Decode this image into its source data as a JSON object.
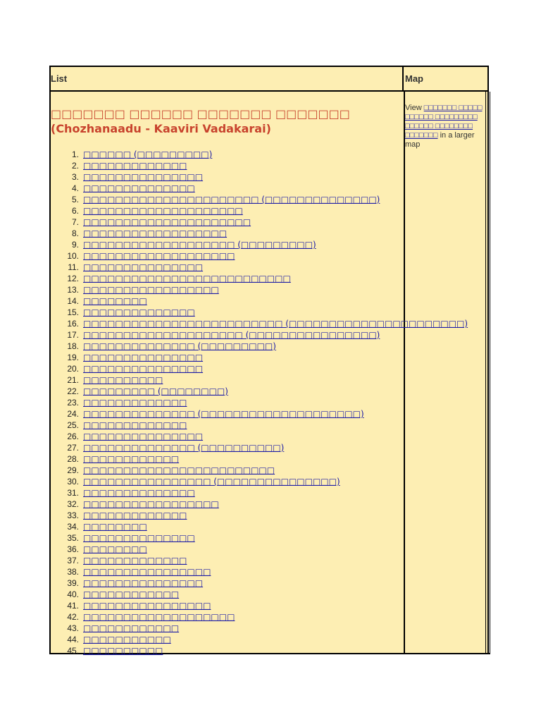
{
  "header": {
    "list_label": "List",
    "map_label": "Map"
  },
  "title": "□□□□□□□ □□□□□□ □□□□□□□ □□□□□□□ (Chozhanaadu - Kaaviri Vadakarai)",
  "map_cell": {
    "prefix": "View ",
    "link_text": "□□□□□□□ □□□□□ □□□□□□ □□□□□□□□□ □□□□□□ □□□□□□□□ □□□□□□□",
    "suffix": " in a larger map"
  },
  "items": [
    {
      "num": "1.",
      "text": "□□□□□□ (□□□□□□□□□)"
    },
    {
      "num": "2.",
      "text": "□□□□□□□□□□□□□"
    },
    {
      "num": "3.",
      "text": "□□□□□□□□□□□□□□□"
    },
    {
      "num": "4.",
      "text": "□□□□□□□□□□□□□□"
    },
    {
      "num": "5.",
      "text": "□□□□□□□□□□□□□□□□□□□□□□ (□□□□□□□□□□□□□□)"
    },
    {
      "num": "6.",
      "text": "□□□□□□□□□□□□□□□□□□□□"
    },
    {
      "num": "7.",
      "text": "□□□□□□□□□□□□□□□□□□□□□"
    },
    {
      "num": "8.",
      "text": "□□□□□□□□□□□□□□□□□□"
    },
    {
      "num": "9.",
      "text": "□□□□□□□□□□□□□□□□□□□ (□□□□□□□□□)"
    },
    {
      "num": "10.",
      "text": "□□□□□□□□□□□□□□□□□□□"
    },
    {
      "num": "11.",
      "text": "□□□□□□□□□□□□□□□"
    },
    {
      "num": "12.",
      "text": "□□□□□□□□□□□□□□□□□□□□□□□□□□"
    },
    {
      "num": "13.",
      "text": "□□□□□□□□□□□□□□□□□"
    },
    {
      "num": "14.",
      "text": "□□□□□□□□"
    },
    {
      "num": "15.",
      "text": "□□□□□□□□□□□□□□"
    },
    {
      "num": "16.",
      "text": "□□□□□□□□□□□□□□□□□□□□□□□□□ (□□□□□□□□□□□□□□□□□□□□□□)"
    },
    {
      "num": "17.",
      "text": "□□□□□□□□□□□□□□□□□□□□ (□□□□□□□□□□□□□□□□)"
    },
    {
      "num": "18.",
      "text": "□□□□□□□□□□□□□□ (□□□□□□□□□)"
    },
    {
      "num": "19.",
      "text": "□□□□□□□□□□□□□□□"
    },
    {
      "num": "20.",
      "text": "□□□□□□□□□□□□□□□"
    },
    {
      "num": "21.",
      "text": "□□□□□□□□□□"
    },
    {
      "num": "22.",
      "text": "□□□□□□□□□ (□□□□□□□□)"
    },
    {
      "num": "23.",
      "text": "□□□□□□□□□□□□□"
    },
    {
      "num": "24.",
      "text": "□□□□□□□□□□□□□□ (□□□□□□□□□□□□□□□□□□□□)"
    },
    {
      "num": "25.",
      "text": "□□□□□□□□□□□□□"
    },
    {
      "num": "26.",
      "text": "□□□□□□□□□□□□□□□"
    },
    {
      "num": "27.",
      "text": "□□□□□□□□□□□□□□ (□□□□□□□□□□)"
    },
    {
      "num": "28.",
      "text": "□□□□□□□□□□□□"
    },
    {
      "num": "29.",
      "text": "□□□□□□□□□□□□□□□□□□□□□□□□"
    },
    {
      "num": "30.",
      "text": "□□□□□□□□□□□□□□□□ (□□□□□□□□□□□□□□□)"
    },
    {
      "num": "31.",
      "text": "□□□□□□□□□□□□□□"
    },
    {
      "num": "32.",
      "text": "□□□□□□□□□□□□□□□□□"
    },
    {
      "num": "33.",
      "text": "□□□□□□□□□□□□□"
    },
    {
      "num": "34.",
      "text": "□□□□□□□□"
    },
    {
      "num": "35.",
      "text": "□□□□□□□□□□□□□□"
    },
    {
      "num": "36.",
      "text": "□□□□□□□□"
    },
    {
      "num": "37.",
      "text": "□□□□□□□□□□□□□"
    },
    {
      "num": "38.",
      "text": "□□□□□□□□□□□□□□□□"
    },
    {
      "num": "39.",
      "text": "□□□□□□□□□□□□□□□"
    },
    {
      "num": "40.",
      "text": "□□□□□□□□□□□□"
    },
    {
      "num": "41.",
      "text": "□□□□□□□□□□□□□□□□"
    },
    {
      "num": "42.",
      "text": "□□□□□□□□□□□□□□□□□□□"
    },
    {
      "num": "43.",
      "text": "□□□□□□□□□□□□"
    },
    {
      "num": "44.",
      "text": "□□□□□□□□□□□"
    },
    {
      "num": "45.",
      "text": "□□□□□□□□□□"
    }
  ]
}
